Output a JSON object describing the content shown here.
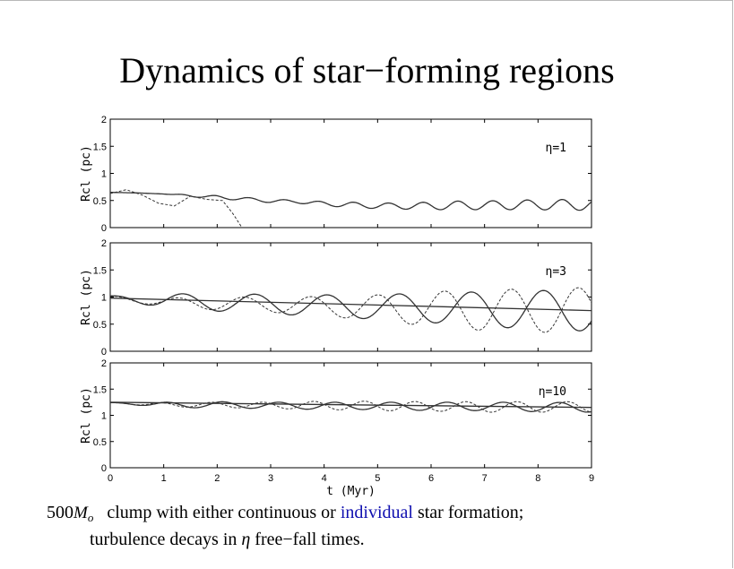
{
  "title": "Dynamics of star−forming regions",
  "caption": {
    "mass_value": "500",
    "mass_symbol": "M",
    "mass_subscript": "o",
    "line1_a": "clump with either continuous or",
    "line1_highlight": "individual",
    "line1_b": "star formation;",
    "line2_a": "turbulence decays in",
    "line2_symbol": "η",
    "line2_b": "free−fall times."
  },
  "colors": {
    "highlight": "#1010b0",
    "lines": "#333333"
  },
  "chart_data": [
    {
      "type": "line",
      "panel_label": "η=1",
      "ylabel": "Rcl (pc)",
      "xlabel": "",
      "xlim": [
        0,
        9
      ],
      "ylim": [
        0,
        2
      ],
      "y_ticks": [
        "0",
        "0.5",
        "1",
        "1.5",
        "2"
      ],
      "x_ticks": [],
      "grid": false,
      "series": [
        {
          "style": "solid",
          "x": [
            0,
            0.5,
            1,
            1.5,
            2,
            2.5,
            3,
            3.5,
            4,
            4.5,
            5,
            5.5,
            6,
            6.5,
            7,
            7.5,
            8,
            8.5,
            9
          ],
          "y": [
            0.65,
            0.64,
            0.62,
            0.59,
            0.56,
            0.53,
            0.49,
            0.48,
            0.44,
            0.42,
            0.4,
            0.4,
            0.4,
            0.41,
            0.41,
            0.42,
            0.42,
            0.42,
            0.42
          ],
          "osc_amp": [
            0,
            0,
            0,
            0.02,
            0.03,
            0.03,
            0.03,
            0.03,
            0.04,
            0.05,
            0.05,
            0.06,
            0.07,
            0.08,
            0.08,
            0.09,
            0.09,
            0.1,
            0.1
          ],
          "period": 0.65
        },
        {
          "style": "dashed",
          "x": [
            0,
            0.3,
            0.6,
            0.9,
            1.2,
            1.5,
            1.8,
            2.1,
            2.3,
            2.45
          ],
          "y": [
            0.63,
            0.7,
            0.6,
            0.45,
            0.4,
            0.58,
            0.52,
            0.5,
            0.25,
            0.02
          ]
        }
      ]
    },
    {
      "type": "line",
      "panel_label": "η=3",
      "ylabel": "Rcl (pc)",
      "xlabel": "",
      "xlim": [
        0,
        9
      ],
      "ylim": [
        0,
        2
      ],
      "y_ticks": [
        "0",
        "0.5",
        "1",
        "1.5",
        "2"
      ],
      "x_ticks": [],
      "grid": false,
      "series": [
        {
          "style": "solid",
          "x": [
            0,
            9
          ],
          "y": [
            0.98,
            0.75
          ]
        },
        {
          "style": "solid",
          "x": [
            0,
            1,
            2,
            3,
            4,
            5,
            6,
            7,
            8,
            9
          ],
          "y": [
            1.0,
            0.93,
            0.9,
            0.87,
            0.84,
            0.82,
            0.8,
            0.78,
            0.76,
            0.75
          ],
          "osc_amp": [
            0.02,
            0.13,
            0.16,
            0.18,
            0.2,
            0.23,
            0.27,
            0.32,
            0.36,
            0.38
          ],
          "period": 1.35
        },
        {
          "style": "dashed",
          "x": [
            0,
            1,
            2,
            3,
            4,
            5,
            6,
            7,
            8,
            9
          ],
          "y": [
            1.0,
            0.9,
            0.88,
            0.86,
            0.83,
            0.8,
            0.78,
            0.76,
            0.75,
            0.76
          ],
          "osc_amp": [
            0.02,
            0.08,
            0.12,
            0.14,
            0.18,
            0.24,
            0.32,
            0.38,
            0.4,
            0.42
          ],
          "period": 1.25
        }
      ]
    },
    {
      "type": "line",
      "panel_label": "η=10",
      "ylabel": "Rcl (pc)",
      "xlabel": "t  (Myr)",
      "xlim": [
        0,
        9
      ],
      "ylim": [
        0,
        2
      ],
      "y_ticks": [
        "0",
        "0.5",
        "1",
        "1.5",
        "2"
      ],
      "x_ticks": [
        "0",
        "1",
        "2",
        "3",
        "4",
        "5",
        "6",
        "7",
        "8",
        "9"
      ],
      "grid": false,
      "series": [
        {
          "style": "solid",
          "x": [
            0,
            9
          ],
          "y": [
            1.25,
            1.15
          ]
        },
        {
          "style": "solid",
          "x": [
            0,
            1,
            2,
            3,
            4,
            5,
            6,
            7,
            8,
            9
          ],
          "y": [
            1.24,
            1.2,
            1.2,
            1.19,
            1.18,
            1.18,
            1.17,
            1.17,
            1.16,
            1.15
          ],
          "osc_amp": [
            0.0,
            0.05,
            0.06,
            0.06,
            0.07,
            0.07,
            0.08,
            0.08,
            0.09,
            0.09
          ],
          "period": 1.05
        },
        {
          "style": "dashed",
          "x": [
            0,
            1,
            2,
            3,
            4,
            5,
            6,
            7,
            8,
            9
          ],
          "y": [
            1.24,
            1.2,
            1.2,
            1.19,
            1.19,
            1.18,
            1.17,
            1.16,
            1.16,
            1.16
          ],
          "osc_amp": [
            0.0,
            0.04,
            0.05,
            0.06,
            0.08,
            0.09,
            0.09,
            0.1,
            0.1,
            0.1
          ],
          "period": 0.95
        }
      ]
    }
  ]
}
